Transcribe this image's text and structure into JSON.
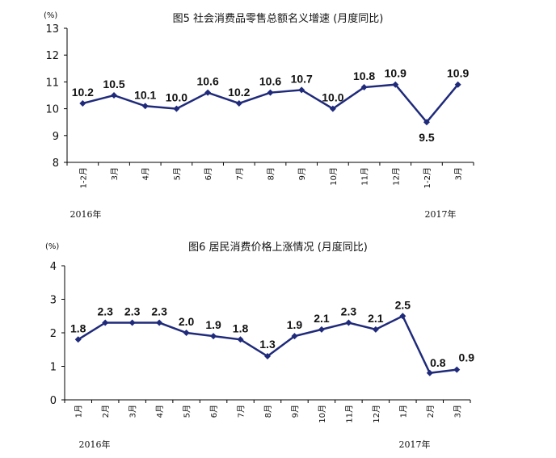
{
  "colors": {
    "series": "#1f2a7a",
    "axis": "#000000"
  },
  "chart_data": [
    {
      "type": "line",
      "title": "图5  社会消费品零售总额名义增速  (月度同比)",
      "unit": "(%)",
      "ylim": [
        8,
        13
      ],
      "yticks": [
        8,
        9,
        10,
        11,
        12,
        13
      ],
      "categories": [
        "1-2月",
        "3月",
        "4月",
        "5月",
        "6月",
        "7月",
        "8月",
        "9月",
        "10月",
        "11月",
        "12月",
        "1-2月",
        "3月"
      ],
      "values": [
        10.2,
        10.5,
        10.1,
        10.0,
        10.6,
        10.2,
        10.6,
        10.7,
        10.0,
        10.8,
        10.9,
        9.5,
        10.9
      ],
      "value_labels": [
        "10.2",
        "10.5",
        "10.1",
        "10.0",
        "10.6",
        "10.2",
        "10.6",
        "10.7",
        "10.0",
        "10.8",
        "10.9",
        "9.5",
        "10.9"
      ],
      "year_labels": [
        "2016年",
        "2017年"
      ],
      "grid": false
    },
    {
      "type": "line",
      "title": "图6   居民消费价格上涨情况  (月度同比)",
      "unit": "(%)",
      "ylim": [
        0,
        4
      ],
      "yticks": [
        0,
        1,
        2,
        3,
        4
      ],
      "categories": [
        "1月",
        "2月",
        "3月",
        "4月",
        "5月",
        "6月",
        "7月",
        "8月",
        "9月",
        "10月",
        "11月",
        "12月",
        "1月",
        "2月",
        "3月"
      ],
      "values": [
        1.8,
        2.3,
        2.3,
        2.3,
        2.0,
        1.9,
        1.8,
        1.3,
        1.9,
        2.1,
        2.3,
        2.1,
        2.5,
        0.8,
        0.9
      ],
      "value_labels": [
        "1.8",
        "2.3",
        "2.3",
        "2.3",
        "2.0",
        "1.9",
        "1.8",
        "1.3",
        "1.9",
        "2.1",
        "2.3",
        "2.1",
        "2.5",
        "0.8",
        "0.9"
      ],
      "year_labels": [
        "2016年",
        "2017年"
      ],
      "grid": false
    }
  ]
}
